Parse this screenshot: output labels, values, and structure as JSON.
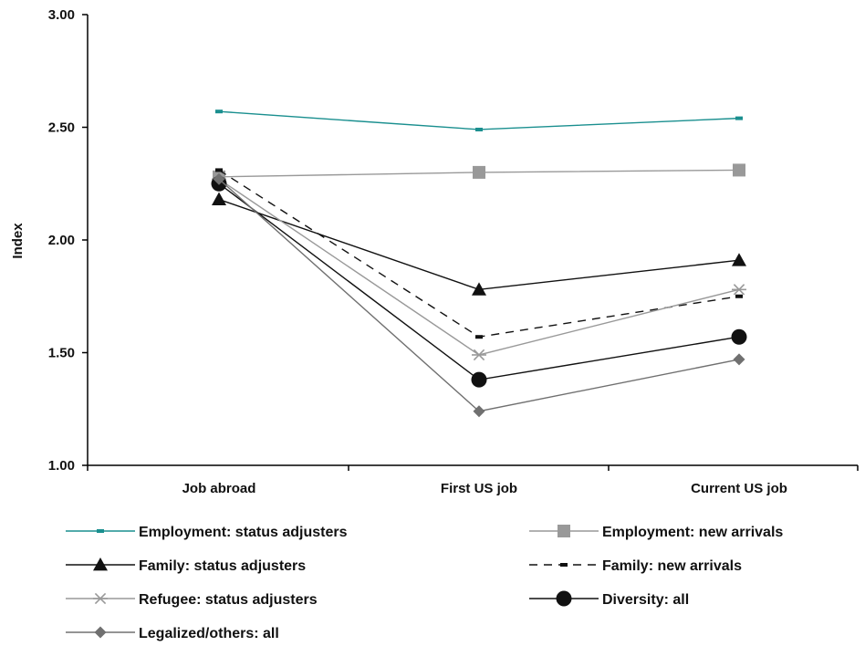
{
  "chart_data": {
    "type": "line",
    "title": "",
    "xlabel": "",
    "ylabel": "Index",
    "ylim": [
      1.0,
      3.0
    ],
    "yticks": [
      "1.00",
      "1.50",
      "2.00",
      "2.50",
      "3.00"
    ],
    "categories": [
      "Job abroad",
      "First US job",
      "Current US job"
    ],
    "grid": false,
    "legend_position": "bottom",
    "series": [
      {
        "name": "Employment: status adjusters",
        "values": [
          2.57,
          2.49,
          2.54
        ],
        "color": "#1a8f8f",
        "marker": "dash",
        "dash": "solid"
      },
      {
        "name": "Employment: new arrivals",
        "values": [
          2.28,
          2.3,
          2.31
        ],
        "color": "#999999",
        "marker": "square",
        "dash": "solid"
      },
      {
        "name": "Family: status adjusters",
        "values": [
          2.18,
          1.78,
          1.91
        ],
        "color": "#111111",
        "marker": "triangle",
        "dash": "solid"
      },
      {
        "name": "Family: new arrivals",
        "values": [
          2.31,
          1.57,
          1.75
        ],
        "color": "#111111",
        "marker": "dash",
        "dash": "dashed"
      },
      {
        "name": "Refugee: status adjusters",
        "values": [
          2.27,
          1.49,
          1.78
        ],
        "color": "#999999",
        "marker": "star",
        "dash": "solid"
      },
      {
        "name": "Diversity: all",
        "values": [
          2.25,
          1.38,
          1.57
        ],
        "color": "#111111",
        "marker": "circle",
        "dash": "solid"
      },
      {
        "name": "Legalized/others: all",
        "values": [
          2.27,
          1.24,
          1.47
        ],
        "color": "#707070",
        "marker": "diamond",
        "dash": "solid"
      }
    ]
  }
}
